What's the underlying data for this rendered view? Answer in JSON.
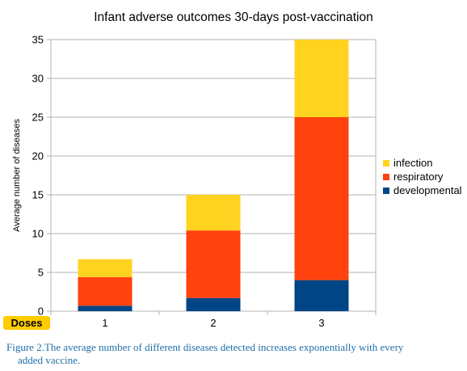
{
  "chart_data": {
    "type": "bar",
    "stacked": true,
    "title": "Infant adverse outcomes 30-days post-vaccination",
    "xlabel": "Doses",
    "ylabel": "Average number of diseases",
    "categories": [
      "1",
      "2",
      "3"
    ],
    "ylim": [
      0,
      35
    ],
    "yticks": [
      0,
      5,
      10,
      15,
      20,
      25,
      30,
      35
    ],
    "grid": true,
    "legend_position": "right",
    "series": [
      {
        "name": "developmental",
        "color": "#004586",
        "values": [
          0.7,
          1.7,
          4.0
        ]
      },
      {
        "name": "respiratory",
        "color": "#ff420e",
        "values": [
          3.7,
          8.7,
          21.0
        ]
      },
      {
        "name": "infection",
        "color": "#ffd320",
        "values": [
          2.3,
          4.6,
          10.0
        ]
      }
    ],
    "legend_order": [
      "infection",
      "respiratory",
      "developmental"
    ]
  },
  "caption": {
    "line1": "Figure 2.The average number of different diseases detected increases exponentially with every",
    "line2": "added vaccine."
  }
}
